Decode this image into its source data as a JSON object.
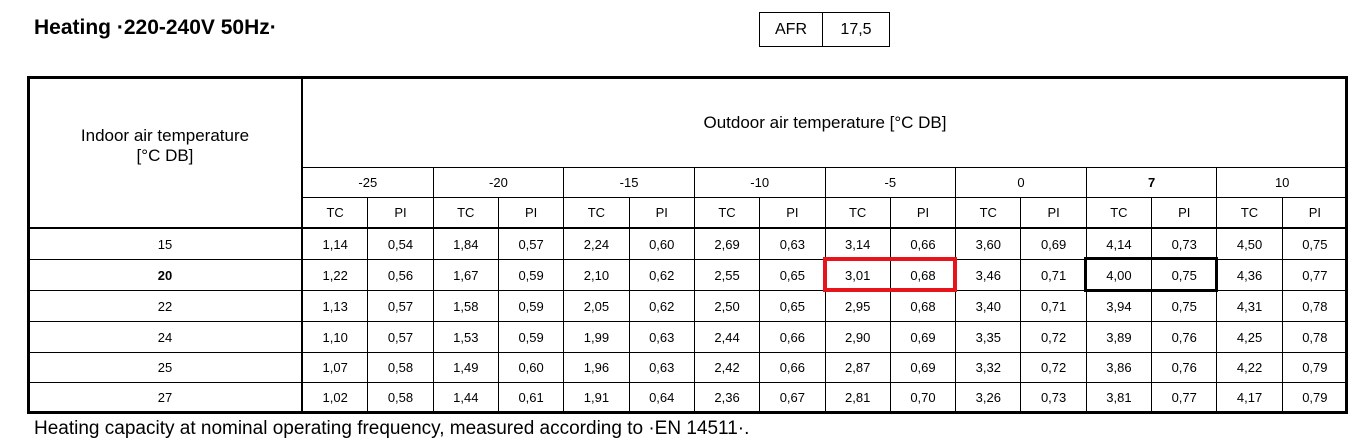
{
  "title": "Heating ·220-240V 50Hz·",
  "afr": {
    "label": "AFR",
    "value": "17,5"
  },
  "table": {
    "indoor_header": "Indoor air temperature\n[°C DB]",
    "outdoor_header": "Outdoor air temperature [°C DB]",
    "outdoor_temps": [
      "-25",
      "-20",
      "-15",
      "-10",
      "-5",
      "0",
      "7",
      "10"
    ],
    "sub_headers": [
      "TC",
      "PI"
    ],
    "rows": [
      {
        "indoor": "15",
        "values": [
          "1,14",
          "0,54",
          "1,84",
          "0,57",
          "2,24",
          "0,60",
          "2,69",
          "0,63",
          "3,14",
          "0,66",
          "3,60",
          "0,69",
          "4,14",
          "0,73",
          "4,50",
          "0,75"
        ]
      },
      {
        "indoor": "20",
        "values": [
          "1,22",
          "0,56",
          "1,67",
          "0,59",
          "2,10",
          "0,62",
          "2,55",
          "0,65",
          "3,01",
          "0,68",
          "3,46",
          "0,71",
          "4,00",
          "0,75",
          "4,36",
          "0,77"
        ]
      },
      {
        "indoor": "22",
        "values": [
          "1,13",
          "0,57",
          "1,58",
          "0,59",
          "2,05",
          "0,62",
          "2,50",
          "0,65",
          "2,95",
          "0,68",
          "3,40",
          "0,71",
          "3,94",
          "0,75",
          "4,31",
          "0,78"
        ]
      },
      {
        "indoor": "24",
        "values": [
          "1,10",
          "0,57",
          "1,53",
          "0,59",
          "1,99",
          "0,63",
          "2,44",
          "0,66",
          "2,90",
          "0,69",
          "3,35",
          "0,72",
          "3,89",
          "0,76",
          "4,25",
          "0,78"
        ]
      },
      {
        "indoor": "25",
        "values": [
          "1,07",
          "0,58",
          "1,49",
          "0,60",
          "1,96",
          "0,63",
          "2,42",
          "0,66",
          "2,87",
          "0,69",
          "3,32",
          "0,72",
          "3,86",
          "0,76",
          "4,22",
          "0,79"
        ]
      },
      {
        "indoor": "27",
        "values": [
          "1,02",
          "0,58",
          "1,44",
          "0,61",
          "1,91",
          "0,64",
          "2,36",
          "0,67",
          "2,81",
          "0,70",
          "3,26",
          "0,73",
          "3,81",
          "0,77",
          "4,17",
          "0,79"
        ]
      }
    ]
  },
  "footnote": "Heating capacity at nominal operating frequency, measured according to ·EN 14511·."
}
